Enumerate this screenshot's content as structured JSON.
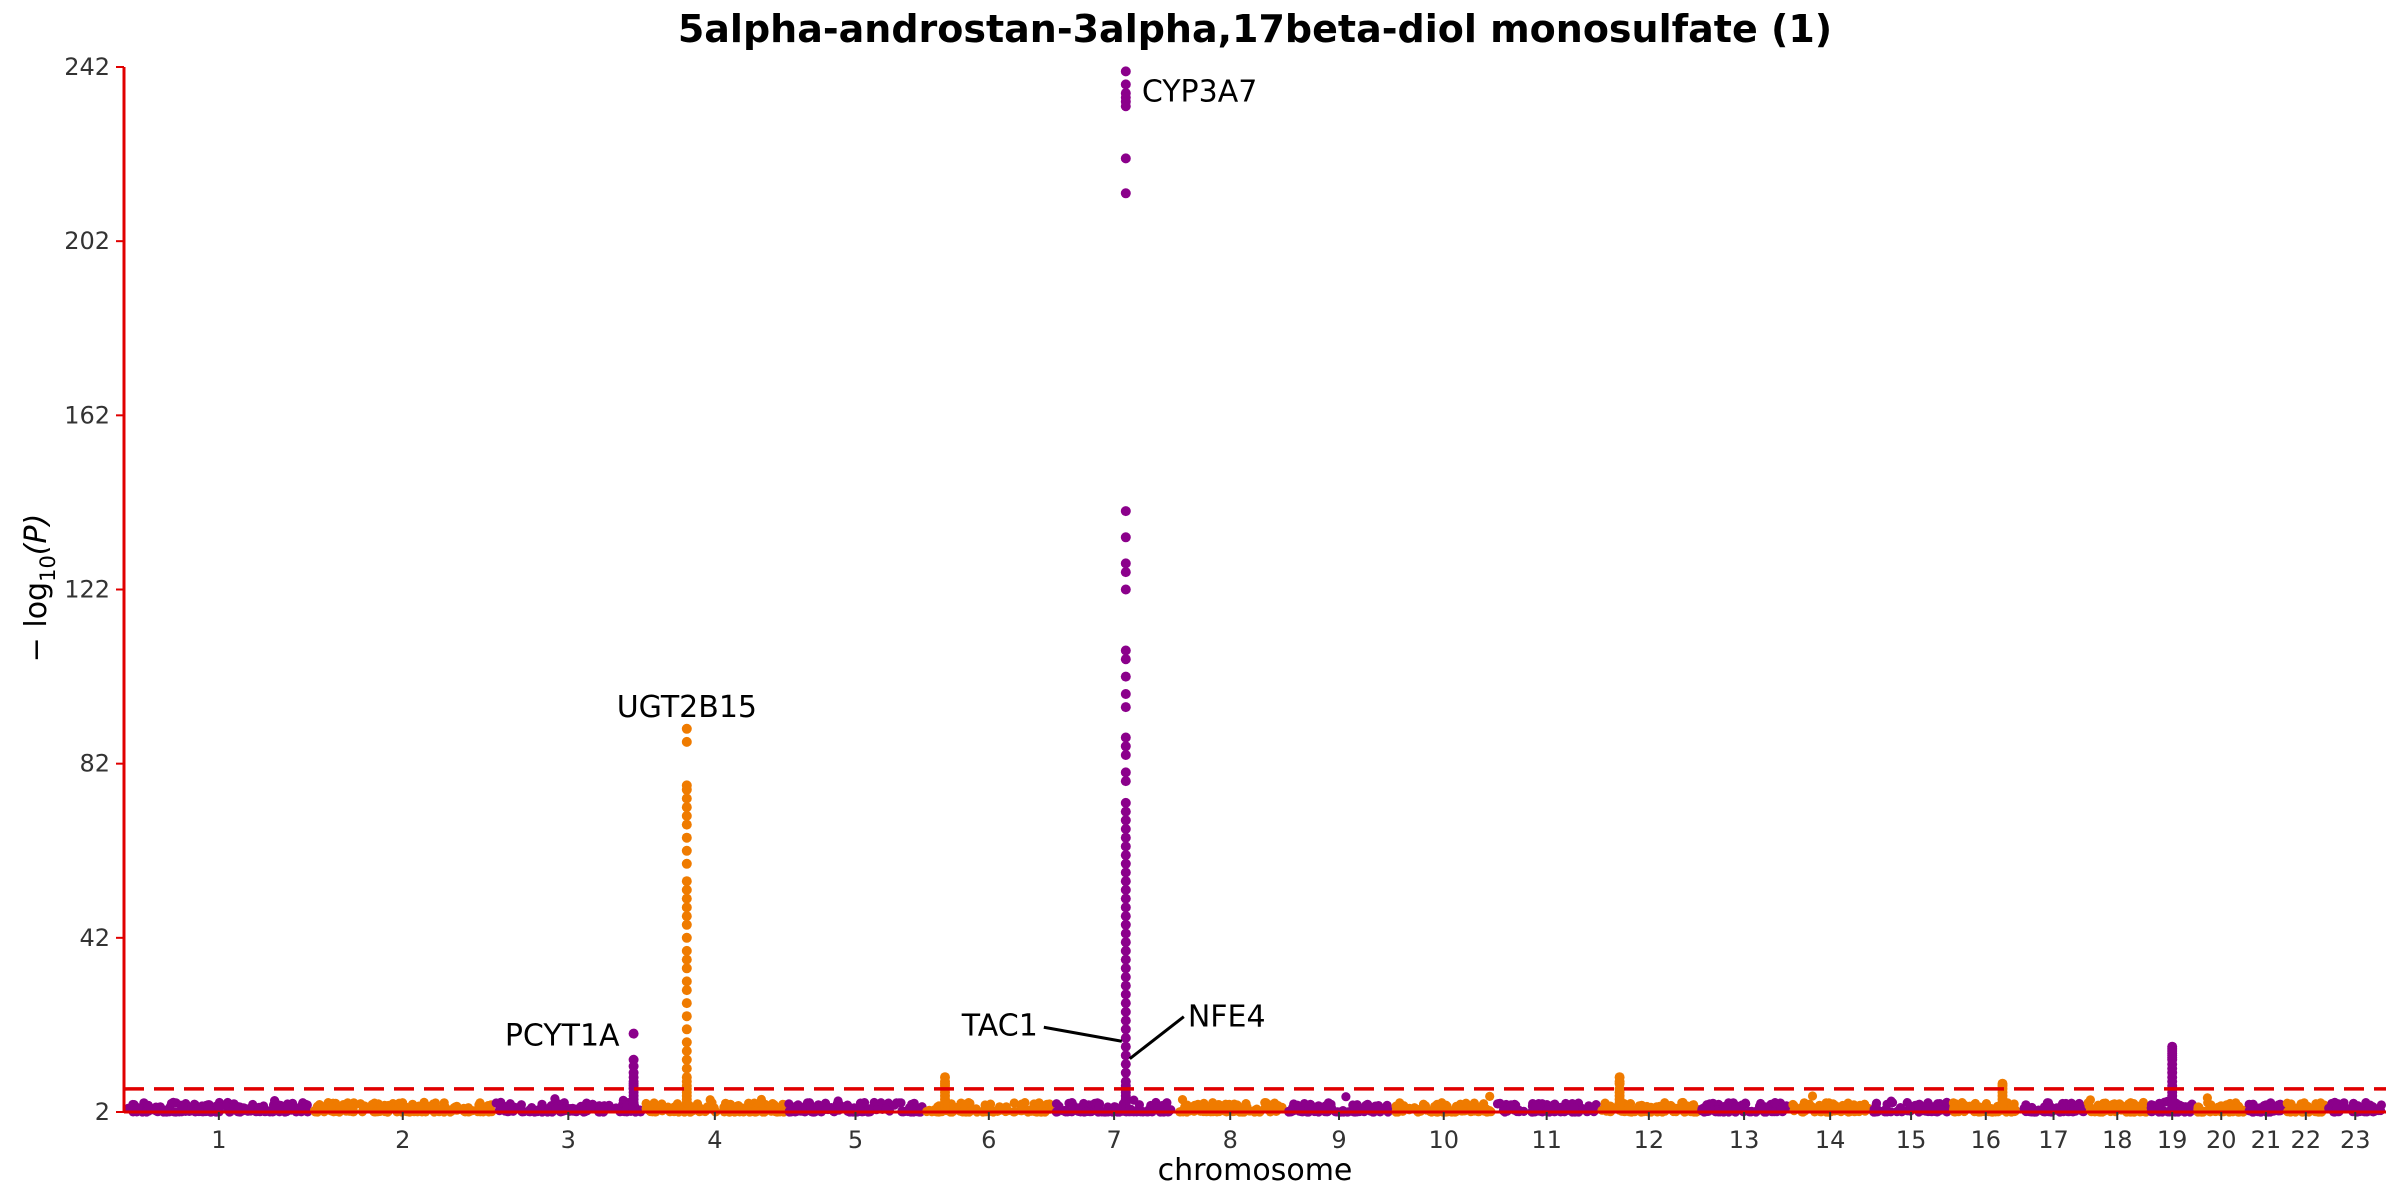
{
  "chart_data": {
    "type": "scatter",
    "title": "5alpha-androstan-3alpha,17beta-diol monosulfate (1)",
    "xlabel": "chromosome",
    "ylabel_parts": {
      "prefix": "− log",
      "subscript": "10",
      "suffix": "(P)"
    },
    "ylim": [
      2,
      242
    ],
    "yticks": [
      "2",
      "42",
      "82",
      "122",
      "162",
      "202",
      "242"
    ],
    "significance_line": 7.3,
    "colors": {
      "purple": "#8b008b",
      "orange": "#ef7b00",
      "axis": "#e00000",
      "threshold": "#e00000"
    },
    "grid": false,
    "legend": "none",
    "chromosomes": [
      {
        "label": "1",
        "color": "purple"
      },
      {
        "label": "2",
        "color": "orange"
      },
      {
        "label": "3",
        "color": "purple"
      },
      {
        "label": "4",
        "color": "orange"
      },
      {
        "label": "5",
        "color": "purple"
      },
      {
        "label": "6",
        "color": "orange"
      },
      {
        "label": "7",
        "color": "purple"
      },
      {
        "label": "8",
        "color": "orange"
      },
      {
        "label": "9",
        "color": "purple"
      },
      {
        "label": "10",
        "color": "orange"
      },
      {
        "label": "11",
        "color": "purple"
      },
      {
        "label": "12",
        "color": "orange"
      },
      {
        "label": "13",
        "color": "purple"
      },
      {
        "label": "14",
        "color": "orange"
      },
      {
        "label": "15",
        "color": "purple"
      },
      {
        "label": "16",
        "color": "orange"
      },
      {
        "label": "17",
        "color": "purple"
      },
      {
        "label": "18",
        "color": "orange"
      },
      {
        "label": "19",
        "color": "purple"
      },
      {
        "label": "20",
        "color": "orange"
      },
      {
        "label": "21",
        "color": "purple"
      },
      {
        "label": "22",
        "color": "orange"
      },
      {
        "label": "23",
        "color": "purple"
      }
    ],
    "peaks": [
      {
        "chromosome": "3",
        "position": 0.95,
        "max": 20,
        "points": [
          20,
          14,
          12.5,
          11,
          10,
          9,
          8.5,
          8,
          7.5
        ]
      },
      {
        "chromosome": "4",
        "position": 0.3,
        "max": 90,
        "points": [
          90,
          87,
          77,
          76,
          74,
          72,
          70,
          68,
          65,
          62,
          59,
          55,
          53,
          51,
          49,
          47,
          45,
          42,
          39,
          37,
          35,
          32,
          30,
          27,
          24,
          21,
          18,
          16,
          14,
          12,
          10,
          9,
          8
        ]
      },
      {
        "chromosome": "6",
        "position": 0.15,
        "max": 10,
        "points": [
          10,
          9,
          8.5,
          8
        ]
      },
      {
        "chromosome": "7",
        "position": 0.6,
        "max": 241,
        "points": [
          241,
          238,
          236,
          235,
          234,
          233,
          221,
          213,
          140,
          134,
          128,
          126,
          122,
          108,
          106,
          102,
          98,
          95,
          88,
          86,
          84,
          80,
          78,
          73,
          71,
          69,
          67,
          65,
          63,
          61,
          59,
          57,
          55,
          53,
          51,
          49,
          47,
          45,
          43,
          41,
          39,
          37,
          35,
          33,
          31,
          29,
          27,
          25,
          23,
          21,
          19,
          17,
          15,
          13,
          11,
          9,
          8
        ]
      },
      {
        "chromosome": "12",
        "position": 0.2,
        "max": 10,
        "points": [
          10,
          9,
          8.5
        ]
      },
      {
        "chromosome": "16",
        "position": 0.75,
        "max": 8.5,
        "points": [
          8.5,
          8
        ]
      },
      {
        "chromosome": "19",
        "position": 0.5,
        "max": 17,
        "points": [
          17,
          16.5,
          16,
          15.5,
          15,
          14.5,
          14,
          13,
          12,
          11,
          10,
          9,
          8
        ]
      }
    ],
    "annotations": [
      {
        "gene": "CYP3A7",
        "chromosome": "7",
        "position": 0.6,
        "value": 241
      },
      {
        "gene": "UGT2B15",
        "chromosome": "4",
        "position": 0.3,
        "value": 90
      },
      {
        "gene": "PCYT1A",
        "chromosome": "3",
        "position": 0.95,
        "value": 20
      },
      {
        "gene": "TAC1",
        "chromosome": "7",
        "position": 0.6,
        "value": 21
      },
      {
        "gene": "NFE4",
        "chromosome": "7",
        "position": 0.6,
        "value": 17
      }
    ]
  }
}
